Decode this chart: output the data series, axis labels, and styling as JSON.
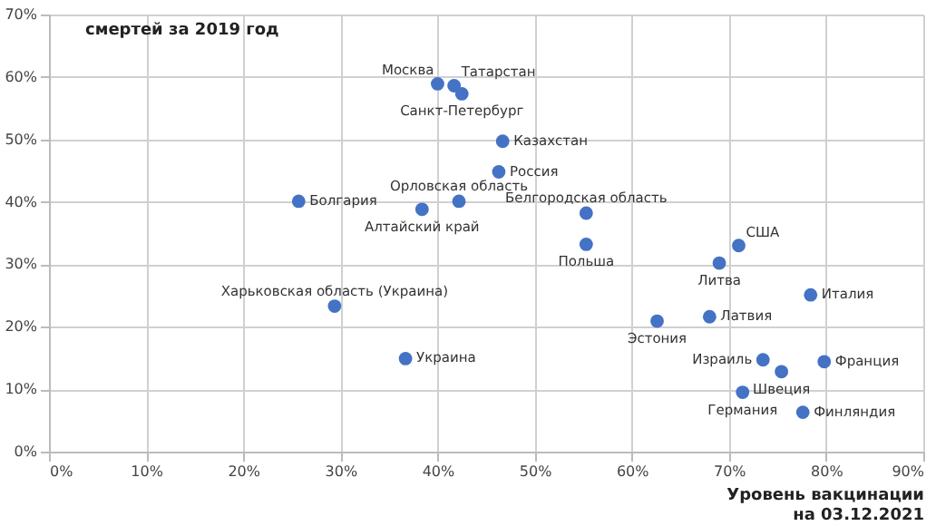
{
  "chart_data": {
    "type": "scatter",
    "ylabel": "смертей за 2019 год",
    "xlabel": "Уровень вакцинации\nна 03.12.2021",
    "series": [
      {
        "color": "#4472c4",
        "x": [
          40.0,
          41.7,
          42.5,
          46.7,
          46.3,
          42.2,
          55.3,
          55.3,
          71.0,
          69.0,
          25.7,
          38.4,
          29.4,
          36.7,
          78.4,
          68.0,
          62.6,
          73.5,
          79.8,
          75.4,
          71.4,
          77.6
        ],
        "values": [
          58.9,
          58.6,
          57.3,
          49.7,
          44.8,
          40.1,
          38.2,
          33.2,
          33.0,
          30.2,
          40.1,
          38.8,
          23.3,
          14.9,
          25.1,
          21.6,
          20.9,
          14.7,
          14.4,
          12.8,
          9.5,
          6.3
        ]
      }
    ],
    "annotations": [
      {
        "text": "Москва",
        "x": 40.0,
        "y": 58.9
      },
      {
        "text": "Татарстан",
        "x": 41.7,
        "y": 58.6
      },
      {
        "text": "Санкт-Петербург",
        "x": 42.5,
        "y": 57.3
      },
      {
        "text": "Казахстан",
        "x": 46.7,
        "y": 49.7
      },
      {
        "text": "Россия",
        "x": 46.3,
        "y": 44.8
      },
      {
        "text": "Орловская область",
        "x": 42.2,
        "y": 40.1
      },
      {
        "text": "Белгородская область",
        "x": 55.3,
        "y": 38.2
      },
      {
        "text": "Польша",
        "x": 55.3,
        "y": 33.2
      },
      {
        "text": "США",
        "x": 71.0,
        "y": 33.0
      },
      {
        "text": "Литва",
        "x": 69.0,
        "y": 30.2
      },
      {
        "text": "Болгария",
        "x": 25.7,
        "y": 40.1
      },
      {
        "text": "Алтайский край",
        "x": 38.4,
        "y": 38.8
      },
      {
        "text": "Харьковская область (Украина)",
        "x": 29.4,
        "y": 23.3
      },
      {
        "text": "Украина",
        "x": 36.7,
        "y": 14.9
      },
      {
        "text": "Италия",
        "x": 78.4,
        "y": 25.1
      },
      {
        "text": "Латвия",
        "x": 68.0,
        "y": 21.6
      },
      {
        "text": "Эстония",
        "x": 62.6,
        "y": 20.9
      },
      {
        "text": "Израиль",
        "x": 73.5,
        "y": 14.7
      },
      {
        "text": "Франция",
        "x": 79.8,
        "y": 14.4
      },
      {
        "text": "Швеция",
        "x": 75.4,
        "y": 12.8
      },
      {
        "text": "Германия",
        "x": 71.4,
        "y": 9.5
      },
      {
        "text": "Финляндия",
        "x": 77.6,
        "y": 6.3
      }
    ],
    "xlim": [
      0,
      90
    ],
    "ylim": [
      0,
      70
    ],
    "xticks": [
      {
        "value": 0,
        "label": "0%"
      },
      {
        "value": 10,
        "label": "10%"
      },
      {
        "value": 20,
        "label": "20%"
      },
      {
        "value": 30,
        "label": "30%"
      },
      {
        "value": 40,
        "label": "40%"
      },
      {
        "value": 50,
        "label": "50%"
      },
      {
        "value": 60,
        "label": "60%"
      },
      {
        "value": 70,
        "label": "70%"
      },
      {
        "value": 80,
        "label": "80%"
      },
      {
        "value": 90,
        "label": "90%"
      }
    ],
    "yticks": [
      {
        "value": 0,
        "label": "0%"
      },
      {
        "value": 10,
        "label": "10%"
      },
      {
        "value": 20,
        "label": "20%"
      },
      {
        "value": 30,
        "label": "30%"
      },
      {
        "value": 40,
        "label": "40%"
      },
      {
        "value": 50,
        "label": "50%"
      },
      {
        "value": 60,
        "label": "60%"
      },
      {
        "value": 70,
        "label": "70%"
      }
    ],
    "grid": true,
    "marker": "circle"
  }
}
